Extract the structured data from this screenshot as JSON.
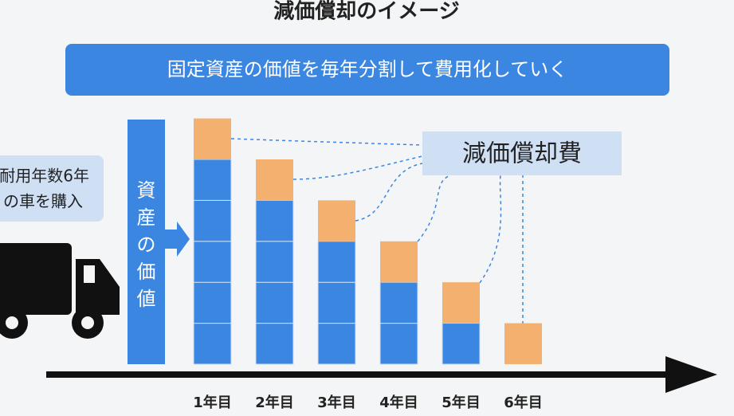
{
  "title": "減価償却のイメージ",
  "banner": "固定資産の価値を毎年分割して費用化していく",
  "purchase_note": {
    "line1": "耐用年数6年",
    "line2": "の車を購入"
  },
  "asset_label": [
    "資",
    "産",
    "の",
    "価",
    "値"
  ],
  "expense_label": "減価償却費",
  "years": [
    "1年目",
    "2年目",
    "3年目",
    "4年目",
    "5年目",
    "6年目"
  ]
}
